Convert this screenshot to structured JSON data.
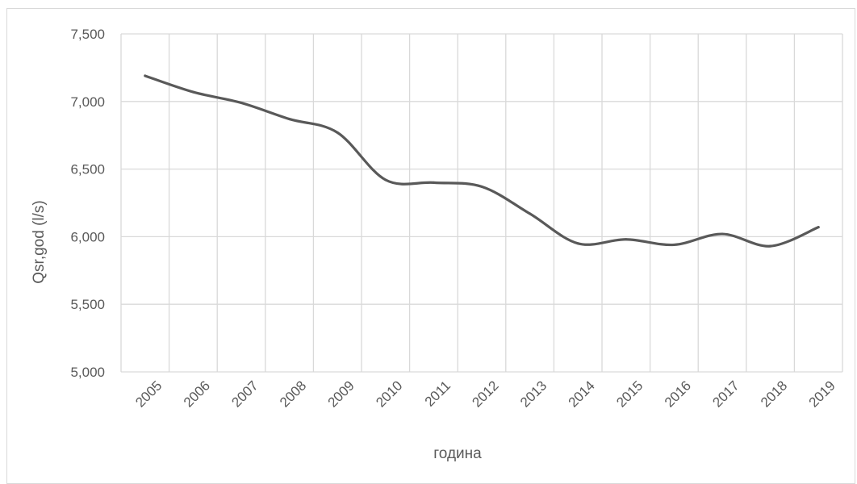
{
  "chart_data": {
    "type": "line",
    "title": "",
    "xlabel": "година",
    "ylabel": "Qsr,god (l/s)",
    "ylim": [
      5000,
      7500
    ],
    "y_ticks": [
      5000,
      5500,
      6000,
      6500,
      7000,
      7500
    ],
    "y_tick_labels": [
      "5,000",
      "5,500",
      "6,000",
      "6,500",
      "7,000",
      "7,500"
    ],
    "categories": [
      "2005",
      "2006",
      "2007",
      "2008",
      "2009",
      "2010",
      "2011",
      "2012",
      "2013",
      "2014",
      "2015",
      "2016",
      "2017",
      "2018",
      "2019"
    ],
    "series": [
      {
        "values": [
          7190,
          7070,
          6990,
          6870,
          6770,
          6420,
          6400,
          6370,
          6170,
          5950,
          5980,
          5940,
          6020,
          5930,
          6070
        ]
      }
    ],
    "grid": true,
    "smooth": true,
    "line_color": "#595959",
    "grid_color": "#d9d9d9"
  }
}
